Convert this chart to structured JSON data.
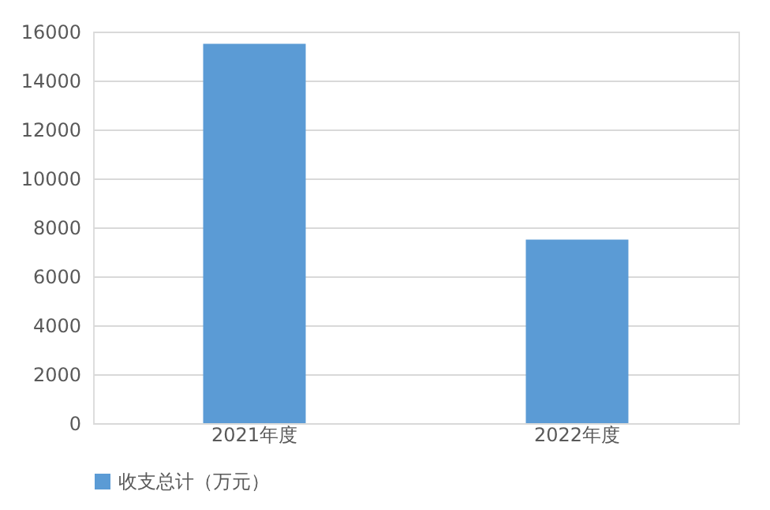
{
  "chart_data": {
    "type": "bar",
    "categories": [
      "2021年度",
      "2022年度"
    ],
    "series": [
      {
        "name": "收支总计（万元）",
        "color": "#5b9bd5",
        "values": [
          15500,
          7500
        ]
      }
    ],
    "ylim": [
      0,
      16000
    ],
    "yticks": [
      0,
      2000,
      4000,
      6000,
      8000,
      10000,
      12000,
      14000,
      16000
    ],
    "grid": "y",
    "legend": "bottom"
  }
}
